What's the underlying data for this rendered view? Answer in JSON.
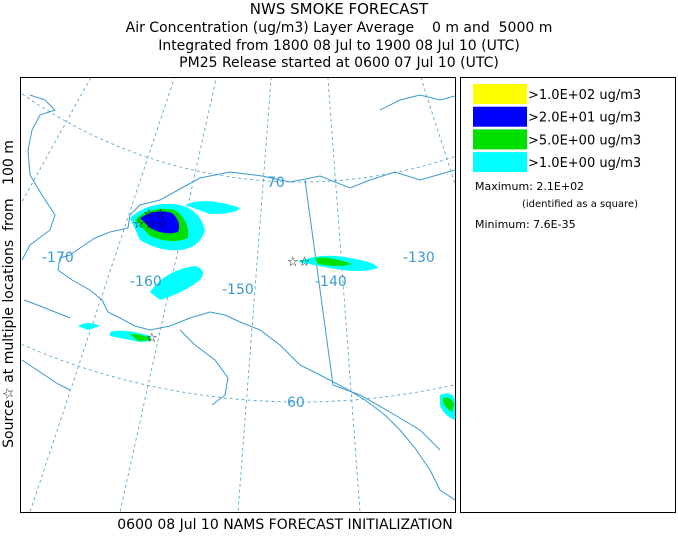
{
  "header": {
    "title": "NWS SMOKE FORECAST",
    "lines": [
      "Air Concentration (ug/m3) Layer Average    0 m and  5000 m",
      "Integrated from 1800 08 Jul to 1900 08 Jul 10 (UTC)",
      "PM25 Release started at 0600 07 Jul 10 (UTC)"
    ]
  },
  "side_label": "Source☆ at multiple locations  from   100 m",
  "footer": "0600 08 Jul 10 NAMS FORECAST INITIALIZATION",
  "map": {
    "longitude_labels": [
      "-170",
      "-160",
      "-150",
      "-140",
      "-130"
    ],
    "latitude_labels": [
      "70",
      "60"
    ]
  },
  "legend": {
    "entries": [
      {
        "label": ">1.0E+02 ug/m3",
        "color": "#ffff00"
      },
      {
        "label": ">2.0E+01 ug/m3",
        "color": "#0000ff"
      },
      {
        "label": ">5.0E+00 ug/m3",
        "color": "#00e000"
      },
      {
        "label": ">1.0E+00 ug/m3",
        "color": "#00ffff"
      }
    ],
    "maximum": "Maximum: 2.1E+02",
    "maximum_note": "(identified as a square)",
    "minimum": "Minimum: 7.6E-35"
  }
}
